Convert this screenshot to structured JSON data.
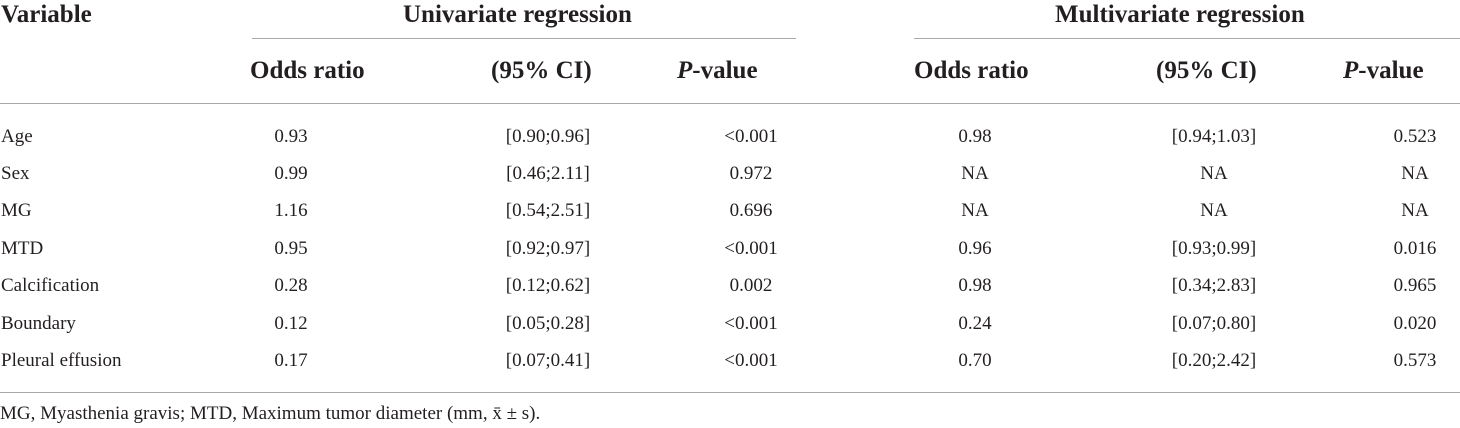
{
  "table": {
    "header": {
      "variable": "Variable",
      "group_univariate": "Univariate regression",
      "group_multivariate": "Multivariate regression",
      "odds_ratio": "Odds ratio",
      "ci": "(95% CI)",
      "p_italic": "P",
      "p_rest": "-value"
    },
    "rows": [
      {
        "variable": "Age",
        "uni_or": "0.93",
        "uni_ci": "[0.90;0.96]",
        "uni_p": "<0.001",
        "multi_or": "0.98",
        "multi_ci": "[0.94;1.03]",
        "multi_p": "0.523"
      },
      {
        "variable": "Sex",
        "uni_or": "0.99",
        "uni_ci": "[0.46;2.11]",
        "uni_p": "0.972",
        "multi_or": "NA",
        "multi_ci": "NA",
        "multi_p": "NA"
      },
      {
        "variable": "MG",
        "uni_or": "1.16",
        "uni_ci": "[0.54;2.51]",
        "uni_p": "0.696",
        "multi_or": "NA",
        "multi_ci": "NA",
        "multi_p": "NA"
      },
      {
        "variable": "MTD",
        "uni_or": "0.95",
        "uni_ci": "[0.92;0.97]",
        "uni_p": "<0.001",
        "multi_or": "0.96",
        "multi_ci": "[0.93;0.99]",
        "multi_p": "0.016"
      },
      {
        "variable": "Calcification",
        "uni_or": "0.28",
        "uni_ci": "[0.12;0.62]",
        "uni_p": "0.002",
        "multi_or": "0.98",
        "multi_ci": "[0.34;2.83]",
        "multi_p": "0.965"
      },
      {
        "variable": "Boundary",
        "uni_or": "0.12",
        "uni_ci": "[0.05;0.28]",
        "uni_p": "<0.001",
        "multi_or": "0.24",
        "multi_ci": "[0.07;0.80]",
        "multi_p": "0.020"
      },
      {
        "variable": "Pleural effusion",
        "uni_or": "0.17",
        "uni_ci": "[0.07;0.41]",
        "uni_p": "<0.001",
        "multi_or": "0.70",
        "multi_ci": "[0.20;2.42]",
        "multi_p": "0.573"
      }
    ],
    "footnote": "MG, Myasthenia gravis; MTD, Maximum tumor diameter (mm, x̄ ± s)."
  }
}
